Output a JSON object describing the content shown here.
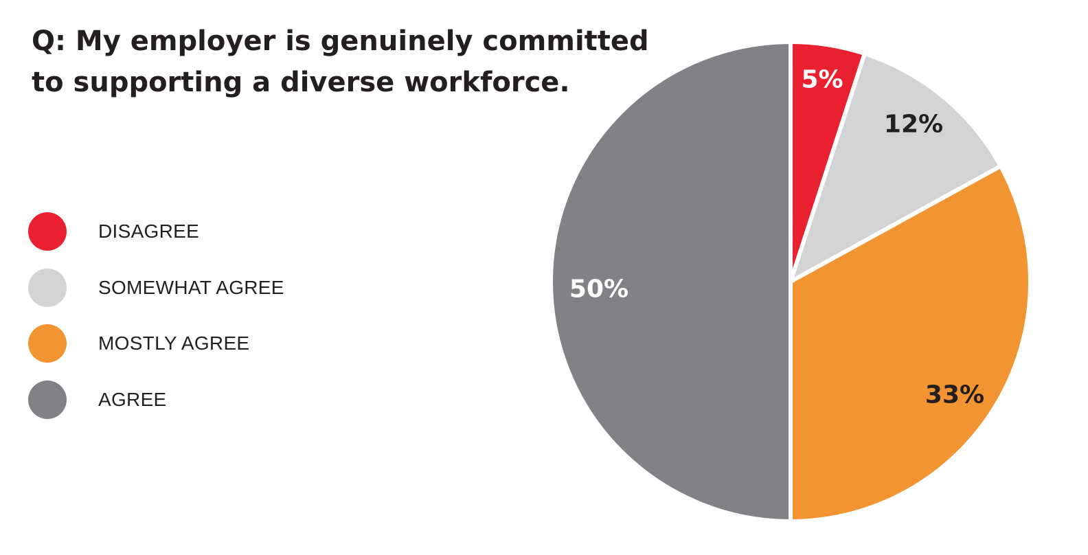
{
  "title_lines": [
    "Q: My employer is genuinely committed",
    "to supporting a diverse workforce."
  ],
  "chart_data": {
    "type": "pie",
    "title": "Q: My employer is genuinely committed to supporting a diverse workforce.",
    "start_angle_deg": 0,
    "direction": "clockwise",
    "legend_position": "left",
    "categories": [
      "DISAGREE",
      "SOMEWHAT AGREE",
      "MOSTLY AGREE",
      "AGREE"
    ],
    "values": [
      5,
      12,
      33,
      50
    ],
    "value_labels": [
      "5%",
      "12%",
      "33%",
      "50%"
    ],
    "colors": [
      "#e8202f",
      "#d1d3d4",
      "#f39433",
      "#808285"
    ],
    "label_colors": [
      "#ffffff",
      "#231f20",
      "#231f20",
      "#ffffff"
    ]
  }
}
